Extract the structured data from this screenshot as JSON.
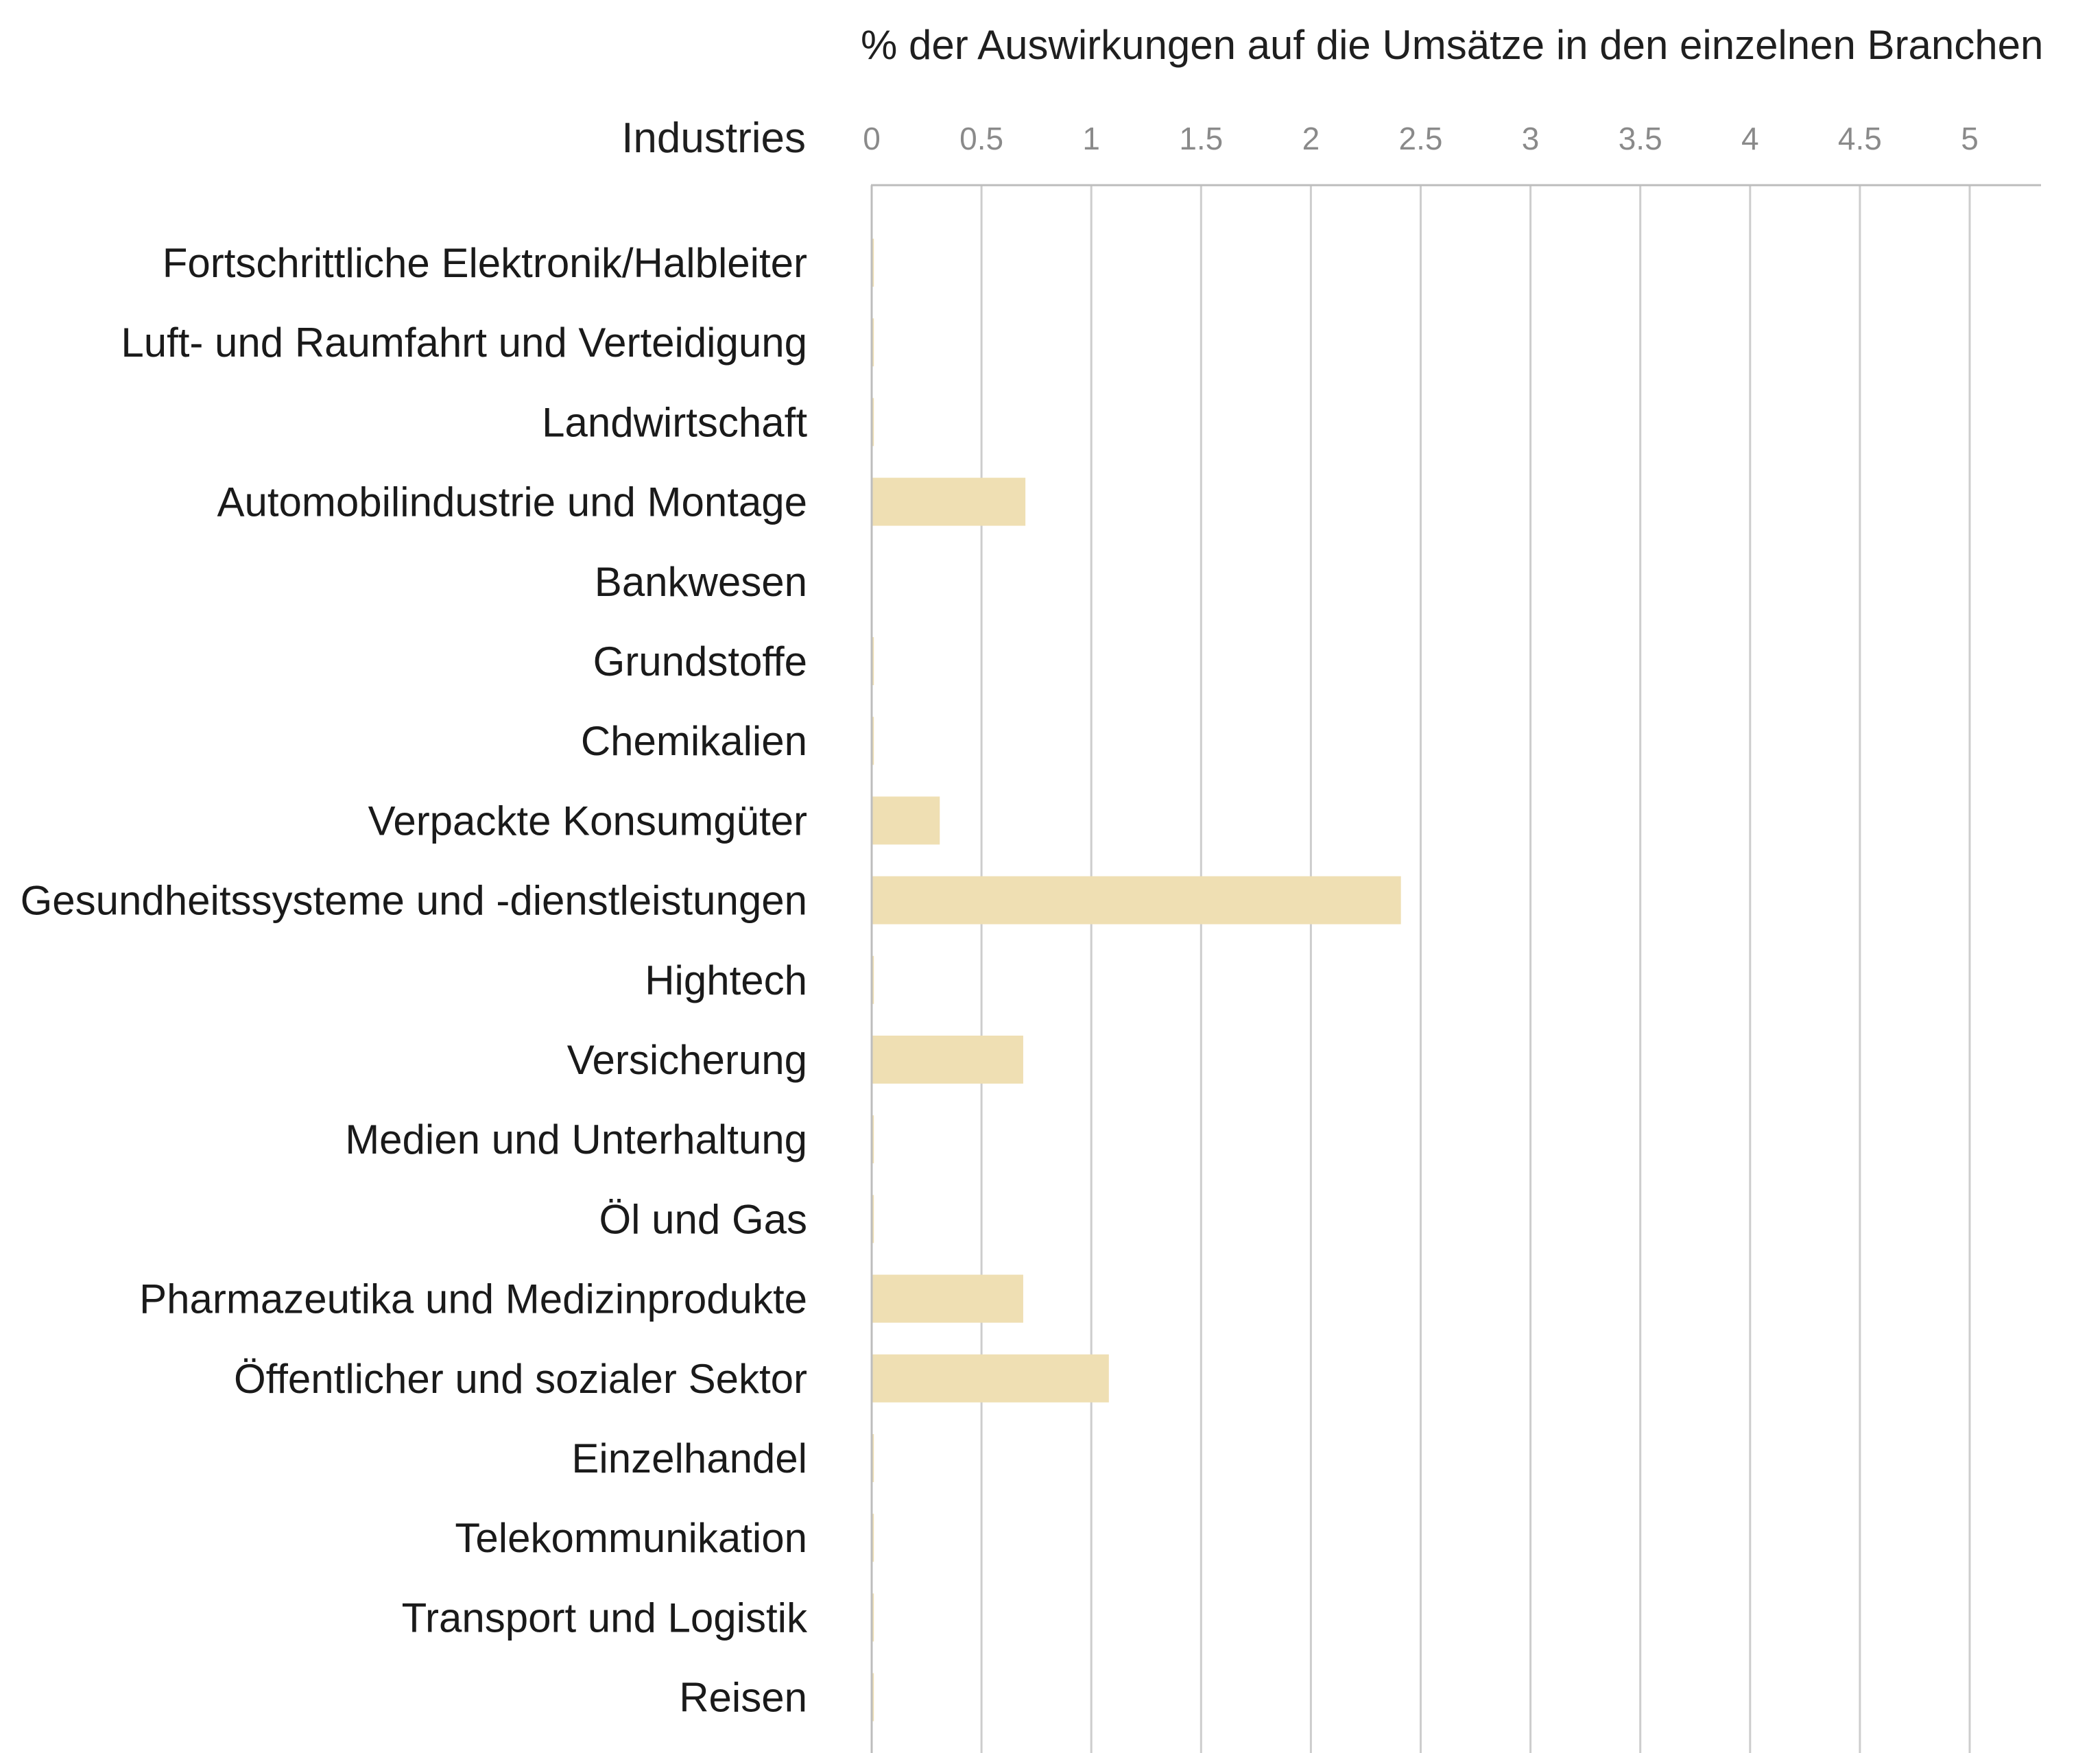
{
  "chart_data": {
    "type": "bar",
    "orientation": "horizontal",
    "title": "% der Auswirkungen auf die Umsätze in den einzelnen Branchen",
    "category_header": "Industries",
    "xlim": [
      0,
      5.3
    ],
    "ticks": [
      0,
      0.5,
      1,
      1.5,
      2,
      2.5,
      3,
      3.5,
      4,
      4.5,
      5
    ],
    "tick_labels": [
      "0",
      "0.5",
      "1",
      "1.5",
      "2",
      "2.5",
      "3",
      "3.5",
      "4",
      "4.5",
      "5"
    ],
    "grid": true,
    "bar_color": "#efdfb3",
    "categories": [
      "Fortschrittliche Elektronik/Halbleiter",
      "Luft- und Raumfahrt und Verteidigung",
      "Landwirtschaft",
      "Automobilindustrie und Montage",
      "Bankwesen",
      "Grundstoffe",
      "Chemikalien",
      "Verpackte Konsumgüter",
      "Gesundheitssysteme und -dienstleistungen",
      "Hightech",
      "Versicherung",
      "Medien und Unterhaltung",
      "Öl und Gas",
      "Pharmazeutika und Medizinprodukte",
      "Öffentlicher und sozialer Sektor",
      "Einzelhandel",
      "Telekommunikation",
      "Transport und Logistik",
      "Reisen"
    ],
    "values": [
      0.01,
      0.01,
      0.01,
      0.7,
      0,
      0.01,
      0.01,
      0.31,
      2.41,
      0.01,
      0.69,
      0.01,
      0.01,
      0.69,
      1.08,
      0.01,
      0.01,
      0.01,
      0.01
    ]
  }
}
